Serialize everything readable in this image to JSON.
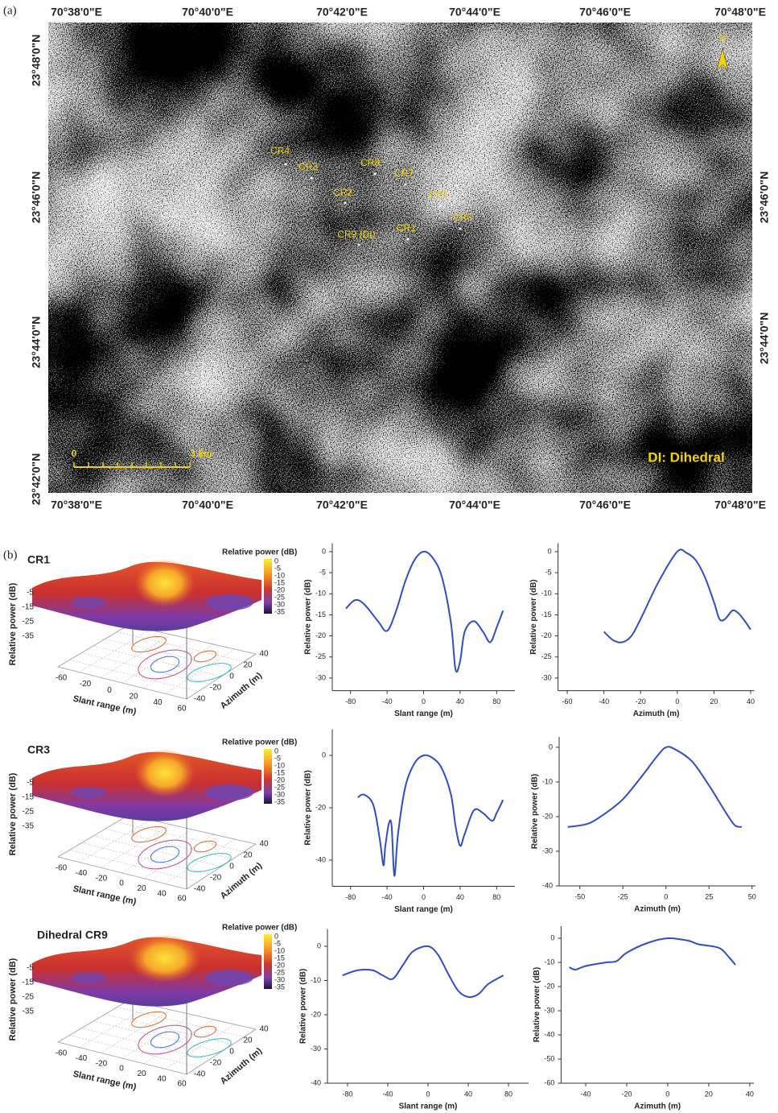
{
  "panel_a": {
    "panel_label": "(a)",
    "top_lon_labels": [
      "70°38'0\"E",
      "70°40'0\"E",
      "70°42'0\"E",
      "70°44'0\"E",
      "70°46'0\"E",
      "70°48'0\"E"
    ],
    "bottom_lon_labels": [
      "70°38'0\"E",
      "70°40'0\"E",
      "70°42'0\"E",
      "70°44'0\"E",
      "70°46'0\"E",
      "70°48'0\"E"
    ],
    "left_lat_labels": [
      "23°48'0\"N",
      "23°46'0\"N",
      "23°44'0\"N",
      "23°42'0\"N"
    ],
    "right_lat_labels": [
      "23°46'0\"N",
      "23°44'0\"N"
    ],
    "targets": [
      "CR4",
      "CR3",
      "CR8",
      "CR7",
      "CR2",
      "CR5",
      "CR6",
      "CR1",
      "CR9 (DI)"
    ],
    "scale_start": "0",
    "scale_end": "3 km",
    "legend": "DI: Dihedral",
    "north": "N"
  },
  "panel_b_label": "(b)",
  "surfaces": [
    {
      "title": "CR1",
      "colorbar_label": "Relative power (dB)",
      "colorbar_ticks": [
        0,
        -5,
        -10,
        -15,
        -20,
        -25,
        -30,
        -35
      ],
      "z_label": "Relative power (dB)",
      "z_ticks": [
        -5,
        -15,
        -25,
        -35
      ],
      "x_label": "Slant range (m)",
      "x_ticks": [
        -60,
        -20,
        0,
        20,
        40,
        60
      ],
      "y_label": "Azimuth (m)",
      "y_ticks": [
        -40,
        -20,
        0,
        20,
        40
      ]
    },
    {
      "title": "CR3",
      "colorbar_label": "Relative power (dB)",
      "colorbar_ticks": [
        0,
        -5,
        -10,
        -15,
        -20,
        -25,
        -30,
        -35
      ],
      "z_label": "Relative power (dB)",
      "z_ticks": [
        -5,
        -15,
        -25,
        -35
      ],
      "x_label": "Slant range (m)",
      "x_ticks": [
        -60,
        -40,
        -20,
        0,
        20,
        40,
        60
      ],
      "y_label": "Azimuth (m)",
      "y_ticks": [
        -40,
        -20,
        0,
        20,
        40
      ]
    },
    {
      "title": "Dihedral CR9",
      "colorbar_label": "Relative power (dB)",
      "colorbar_ticks": [
        0,
        -5,
        -10,
        -15,
        -20,
        -25,
        -30,
        -35
      ],
      "z_label": "Relative power (dB)",
      "z_ticks": [
        -5,
        -15,
        -25,
        -35
      ],
      "x_label": "Slant range (m)",
      "x_ticks": [
        -60,
        -40,
        -20,
        0,
        20,
        40,
        60
      ],
      "y_label": "Azimuth (m)",
      "y_ticks": [
        -40,
        -20,
        0,
        20,
        40
      ]
    }
  ],
  "chart_data": [
    {
      "type": "line",
      "x_label": "Slant range (m)",
      "y_label": "Relative power (dB)",
      "x": [
        -85,
        -75,
        -65,
        -50,
        -40,
        -30,
        -20,
        -10,
        0,
        10,
        20,
        30,
        35,
        40,
        45,
        55,
        65,
        73,
        80,
        87
      ],
      "values": [
        -13.5,
        -11.5,
        -12.5,
        -16.5,
        -18.8,
        -14,
        -7,
        -2,
        0,
        -1.5,
        -6,
        -17,
        -28,
        -26,
        -19,
        -16.5,
        -19,
        -21.5,
        -18,
        -14
      ],
      "color": "#2f4fc0",
      "xlim": [
        -100,
        100
      ],
      "ylim": [
        -33,
        2
      ],
      "xticks": [
        -80,
        -40,
        0,
        40,
        80
      ],
      "yticks": [
        0,
        -5,
        -10,
        -15,
        -20,
        -25,
        -30
      ]
    },
    {
      "type": "line",
      "x_label": "Azimuth (m)",
      "y_label": "Relative power (dB)",
      "x": [
        -40,
        -35,
        -30,
        -25,
        -20,
        -10,
        0,
        5,
        10,
        15,
        20,
        23,
        26,
        30,
        33,
        36,
        40
      ],
      "values": [
        -19,
        -21,
        -21.5,
        -20,
        -16,
        -7,
        0,
        -0.3,
        -2,
        -6,
        -12,
        -16,
        -16,
        -14,
        -14.5,
        -16,
        -18.5
      ],
      "color": "#2f4fc0",
      "xlim": [
        -65,
        42
      ],
      "ylim": [
        -33,
        2
      ],
      "xticks": [
        -60,
        -40,
        -20,
        0,
        20,
        40
      ],
      "yticks": [
        0,
        -5,
        -10,
        -15,
        -20,
        -25,
        -30
      ]
    },
    {
      "type": "line",
      "x_label": "Slant range (m)",
      "y_label": "Relative power (dB)",
      "x": [
        -72,
        -65,
        -55,
        -48,
        -44,
        -42,
        -38,
        -35,
        -32,
        -28,
        -20,
        -10,
        0,
        10,
        20,
        30,
        35,
        40,
        45,
        55,
        65,
        75,
        80,
        87
      ],
      "values": [
        -16,
        -15,
        -19,
        -32,
        -42,
        -35,
        -26,
        -27,
        -46,
        -30,
        -12,
        -3,
        0,
        -1,
        -5,
        -15,
        -27,
        -34.5,
        -30,
        -21,
        -22,
        -25,
        -22,
        -17
      ],
      "color": "#2f4fc0",
      "xlim": [
        -100,
        100
      ],
      "ylim": [
        -50,
        10
      ],
      "xticks": [
        -80,
        -40,
        0,
        40,
        80
      ],
      "yticks": [
        0,
        -20,
        -40
      ]
    },
    {
      "type": "line",
      "x_label": "Azimuth (m)",
      "y_label": "Relative power (dB)",
      "x": [
        -57,
        -45,
        -35,
        -25,
        -15,
        -5,
        0,
        5,
        15,
        25,
        35,
        40,
        44
      ],
      "values": [
        -23,
        -22,
        -19,
        -15,
        -9,
        -2.5,
        0,
        -0.5,
        -4,
        -11,
        -19,
        -22.5,
        -23
      ],
      "color": "#2f4fc0",
      "xlim": [
        -62,
        52
      ],
      "ylim": [
        -40,
        3
      ],
      "xticks": [
        -50,
        -25,
        0,
        25,
        50
      ],
      "yticks": [
        0,
        -10,
        -20,
        -30,
        -40
      ]
    },
    {
      "type": "line",
      "x_label": "Slant range (m)",
      "y_label": "Relative power (dB)",
      "x": [
        -85,
        -70,
        -55,
        -45,
        -35,
        -25,
        -15,
        0,
        10,
        20,
        30,
        40,
        50,
        60,
        75
      ],
      "values": [
        -8.5,
        -7,
        -7,
        -8.5,
        -9.5,
        -5.5,
        -1.5,
        0,
        -2.5,
        -8,
        -13,
        -14.8,
        -14,
        -11,
        -8.5
      ],
      "color": "#2f4fc0",
      "xlim": [
        -100,
        100
      ],
      "ylim": [
        -40,
        5
      ],
      "xticks": [
        -80,
        -40,
        0,
        40,
        80
      ],
      "yticks": [
        0,
        -10,
        -20,
        -30,
        -40
      ]
    },
    {
      "type": "line",
      "x_label": "Azimuth (m)",
      "y_label": "Relative power (dB)",
      "x": [
        -48,
        -45,
        -40,
        -30,
        -25,
        -20,
        -10,
        0,
        10,
        15,
        25,
        30,
        33
      ],
      "values": [
        -12,
        -13,
        -11.5,
        -10,
        -9.5,
        -6,
        -2,
        0,
        -1,
        -2.5,
        -4,
        -8,
        -11
      ],
      "color": "#2f4fc0",
      "xlim": [
        -52,
        42
      ],
      "ylim": [
        -60,
        5
      ],
      "xticks": [
        -40,
        -20,
        0,
        20,
        40
      ],
      "yticks": [
        0,
        -10,
        -20,
        -30,
        -40,
        -50,
        -60
      ]
    }
  ]
}
